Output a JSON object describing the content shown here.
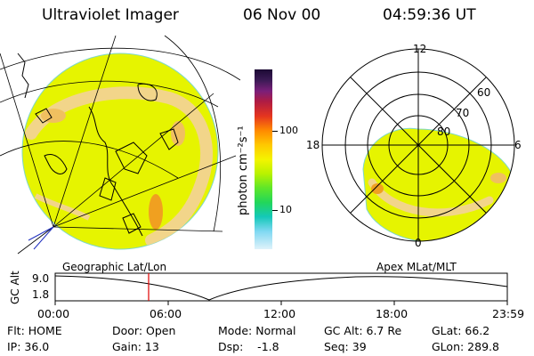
{
  "header": {
    "title": "Ultraviolet Imager",
    "date": "06 Nov 00",
    "time": "04:59:36 UT"
  },
  "colorbar": {
    "unit_label": "photon cm⁻²s⁻¹",
    "ticks": [
      "100",
      "10"
    ]
  },
  "polar_plot": {
    "labels": {
      "top": "12",
      "left": "18",
      "right": "6",
      "bottom": "0"
    },
    "rings": [
      "60",
      "70",
      "80"
    ]
  },
  "timeline": {
    "left_title": "Geographic Lat/Lon",
    "right_title": "Apex MLat/MLT",
    "y_axis_label": "GC Alt",
    "y_top": "9.0",
    "y_bottom": "1.8",
    "x_ticks": [
      "00:00",
      "06:00",
      "12:00",
      "18:00",
      "23:59"
    ]
  },
  "info": {
    "flt": "Flt: HOME",
    "door": "Door: Open",
    "mode": "Mode: Normal",
    "gc_alt": "GC Alt: 6.7 Re",
    "glat": "GLat:  66.2",
    "ip": "IP: 36.0",
    "gain": "Gain: 13",
    "dsp": "Dsp:    -1.8",
    "seq": "Seq: 39",
    "glon": "GLon: 289.8"
  },
  "colors": {
    "image_base": "#e6f400",
    "ridge": "#f2d58a",
    "hotspot": "#f0a020",
    "cursor": "#e00000"
  }
}
